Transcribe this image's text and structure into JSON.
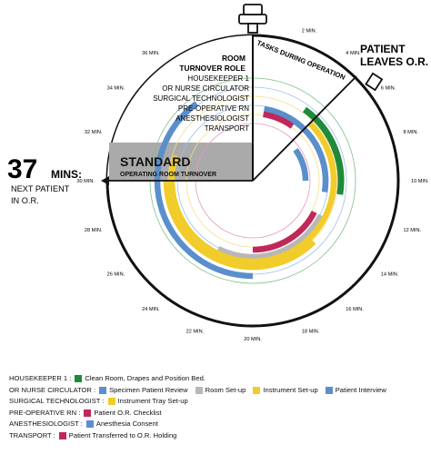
{
  "header": {
    "tasks_label": "TASKS DURING OPERATION",
    "patient_leaves_line1": "PATIENT",
    "patient_leaves_line2": "LEAVES O.R."
  },
  "room_role": {
    "title_line1": "ROOM",
    "title_line2": "TURNOVER ROLE",
    "roles": [
      "HOUSEKEEPER 1",
      "OR NURSE CIRCULATOR",
      "SURGICAL TECHNOLOGIST",
      "PRE-OPERATIVE RN",
      "ANESTHESIOLOGIST",
      "TRANSPORT"
    ]
  },
  "standard_banner": {
    "title": "STANDARD",
    "subtitle": "OPERATING ROOM TURNOVER"
  },
  "next_patient": {
    "minutes": "37",
    "mins_label": "MINS:",
    "line1": "NEXT PATIENT",
    "line2": "IN O.R."
  },
  "tick_labels": [
    "2 MIN.",
    "4 MIN.",
    "6 MIN.",
    "8 MIN.",
    "10 MIN.",
    "12 MIN.",
    "14 MIN.",
    "16 MIN.",
    "18 MIN.",
    "20 MIN.",
    "22 MIN.",
    "24 MIN.",
    "26 MIN.",
    "28 MIN.",
    "30 MIN.",
    "32 MIN.",
    "34 MIN.",
    "36 MIN."
  ],
  "colors": {
    "green": "#1f8a3a",
    "blue": "#5a8fcc",
    "gray": "#b8b8b8",
    "yellow": "#f1cc2a",
    "crimson": "#c0285a",
    "banner_gray": "#aaaaaa",
    "clock_line": "#111111"
  },
  "tasks": [
    {
      "role": "HOUSEKEEPER 1",
      "task": "Clean Room, Drapes and Position Bed.",
      "color": "green",
      "start_min": 4,
      "end_min": 11
    },
    {
      "role": "OR NURSE CIRCULATOR",
      "task": "Patient Interview",
      "color": "blue",
      "start_min": 1,
      "end_min": 11
    },
    {
      "role": "OR NURSE CIRCULATOR",
      "task": "Specimen Patient Review",
      "color": "blue",
      "start_min": 6,
      "end_min": 10
    },
    {
      "role": "OR NURSE CIRCULATOR",
      "task": "Room Set-up",
      "color": "gray",
      "start_min": 13,
      "end_min": 23
    },
    {
      "role": "OR NURSE CIRCULATOR",
      "task": "Instrument Set-up",
      "color": "yellow",
      "start_min": 15,
      "end_min": 30
    },
    {
      "role": "SURGICAL TECHNOLOGIST",
      "task": "Instrument Tray Set-up",
      "color": "yellow",
      "start_min": 5,
      "end_min": 32
    },
    {
      "role": "PRE-OPERATIVE RN",
      "task": "Patient O.R. Checklist",
      "color": "crimson",
      "start_min": 1,
      "end_min": 4
    },
    {
      "role": "ANESTHESIOLOGIST",
      "task": "Anesthesia Consent",
      "color": "blue",
      "start_min": 20,
      "end_min": 36
    },
    {
      "role": "TRANSPORT",
      "task": "Patient Transferred to O.R. Holding",
      "color": "crimson",
      "start_min": 13,
      "end_min": 20
    }
  ],
  "legend": [
    {
      "role": "HOUSEKEEPER 1 :",
      "items": [
        {
          "color": "green",
          "label": "Clean Room, Drapes and Position Bed."
        }
      ]
    },
    {
      "role": "OR NURSE CIRCULATOR :",
      "items": [
        {
          "color": "blue",
          "label": "Specimen Patient Review"
        },
        {
          "color": "gray",
          "label": "Room Set-up"
        },
        {
          "color": "yellow",
          "label": "Instrument Set-up"
        },
        {
          "color": "blue",
          "label": "Patient Interview"
        }
      ]
    },
    {
      "role": "SURGICAL TECHNOLOGIST :",
      "items": [
        {
          "color": "yellow",
          "label": "Instrument Tray Set-up"
        }
      ]
    },
    {
      "role": "PRE-OPERATIVE RN :",
      "items": [
        {
          "color": "crimson",
          "label": "Patient O.R. Checklist"
        }
      ]
    },
    {
      "role": "ANESTHESIOLOGIST :",
      "items": [
        {
          "color": "blue",
          "label": "Anesthesia Consent"
        }
      ]
    },
    {
      "role": "TRANSPORT :",
      "items": [
        {
          "color": "crimson",
          "label": "Patient Transferred to O.R. Holding"
        }
      ]
    }
  ]
}
